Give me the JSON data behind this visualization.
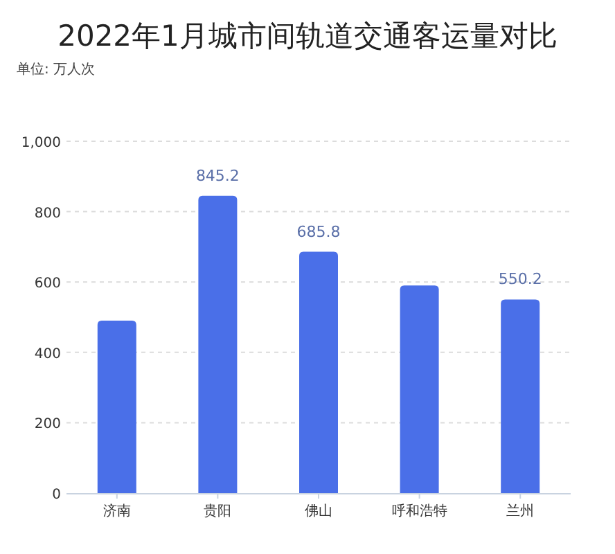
{
  "chart_data": {
    "type": "bar",
    "title": "2022年1月城市间轨道交通客运量对比",
    "ylabel": "单位: 万人次",
    "categories": [
      "济南",
      "贵阳",
      "佛山",
      "呼和浩特",
      "兰州"
    ],
    "values": [
      490,
      845.2,
      685.8,
      590,
      550.2
    ],
    "value_labels": [
      null,
      "845.2",
      "685.8",
      null,
      "550.2"
    ],
    "color": "#4a6fe8",
    "ylim": [
      0,
      1000
    ],
    "yticks": [
      0,
      200,
      400,
      600,
      800,
      {
        "value": 1000,
        "label": "1,000"
      }
    ],
    "grid": "y"
  }
}
